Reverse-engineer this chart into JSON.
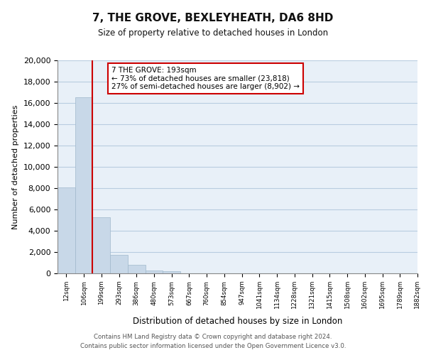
{
  "title": "7, THE GROVE, BEXLEYHEATH, DA6 8HD",
  "subtitle": "Size of property relative to detached houses in London",
  "xlabel": "Distribution of detached houses by size in London",
  "ylabel": "Number of detached properties",
  "bin_labels": [
    "12sqm",
    "106sqm",
    "199sqm",
    "293sqm",
    "386sqm",
    "480sqm",
    "573sqm",
    "667sqm",
    "760sqm",
    "854sqm",
    "947sqm",
    "1041sqm",
    "1134sqm",
    "1228sqm",
    "1321sqm",
    "1415sqm",
    "1508sqm",
    "1602sqm",
    "1695sqm",
    "1789sqm"
  ],
  "bar_values": [
    8100,
    16500,
    5300,
    1750,
    780,
    300,
    220,
    0,
    0,
    0,
    0,
    0,
    0,
    0,
    0,
    0,
    0,
    0,
    0,
    0
  ],
  "bar_color": "#c8d8e8",
  "bar_edge_color": "#a0b8cc",
  "property_line_color": "#cc0000",
  "ylim": [
    0,
    20000
  ],
  "yticks": [
    0,
    2000,
    4000,
    6000,
    8000,
    10000,
    12000,
    14000,
    16000,
    18000,
    20000
  ],
  "annotation_title": "7 THE GROVE: 193sqm",
  "annotation_line1": "← 73% of detached houses are smaller (23,818)",
  "annotation_line2": "27% of semi-detached houses are larger (8,902) →",
  "annotation_box_facecolor": "#ffffff",
  "annotation_box_edgecolor": "#cc0000",
  "footer_line1": "Contains HM Land Registry data © Crown copyright and database right 2024.",
  "footer_line2": "Contains public sector information licensed under the Open Government Licence v3.0.",
  "bg_color": "#e8f0f8",
  "last_xtick_label": "1882sqm"
}
